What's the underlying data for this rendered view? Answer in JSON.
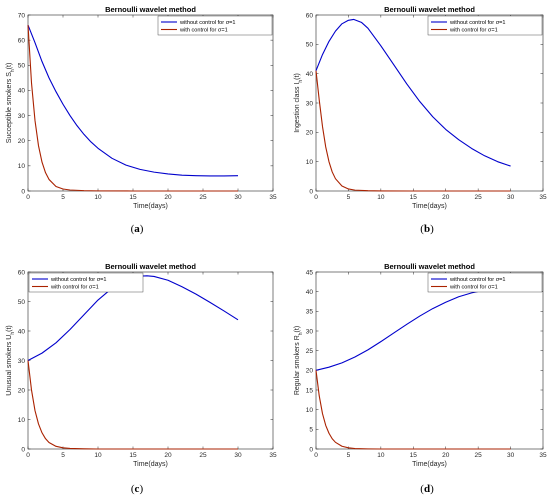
{
  "chart_data": [
    {
      "panel": "(a)",
      "type": "line",
      "title": "Bernoulli wavelet method",
      "xlabel": "Time(days)",
      "ylabel": "Succeptible smokers S_h(t)",
      "xlim": [
        0,
        35
      ],
      "ylim": [
        0,
        70
      ],
      "xticks": [
        0,
        5,
        10,
        15,
        20,
        25,
        30,
        35
      ],
      "yticks": [
        0,
        10,
        20,
        30,
        40,
        50,
        60,
        70
      ],
      "legend_position": "top-right",
      "series": [
        {
          "name": "without control for σ=1",
          "color": "#0000cc",
          "x": [
            0,
            1,
            2,
            3,
            4,
            5,
            6,
            7,
            8,
            9,
            10,
            12,
            14,
            16,
            18,
            20,
            22,
            24,
            26,
            28,
            30
          ],
          "y": [
            66,
            59,
            51.5,
            45,
            39.5,
            34.5,
            30,
            26,
            22.5,
            19.5,
            17,
            13,
            10.3,
            8.6,
            7.5,
            6.8,
            6.3,
            6.1,
            6.0,
            6.0,
            6.1
          ]
        },
        {
          "name": "with control for σ=1",
          "color": "#aa2200",
          "x": [
            0,
            0.5,
            1,
            1.5,
            2,
            2.5,
            3,
            4,
            5,
            6,
            8,
            10,
            15,
            20,
            25,
            30
          ],
          "y": [
            66,
            43,
            28,
            18,
            11.5,
            7.3,
            4.6,
            1.8,
            0.8,
            0.4,
            0.15,
            0.05,
            0,
            0,
            0,
            0
          ]
        }
      ]
    },
    {
      "panel": "(b)",
      "type": "line",
      "title": "Bernoulli wavelet method",
      "xlabel": "Time(days)",
      "ylabel": "Ingestion class I_h(t)",
      "xlim": [
        0,
        35
      ],
      "ylim": [
        0,
        60
      ],
      "xticks": [
        0,
        5,
        10,
        15,
        20,
        25,
        30,
        35
      ],
      "yticks": [
        0,
        10,
        20,
        30,
        40,
        50,
        60
      ],
      "legend_position": "top-right",
      "series": [
        {
          "name": "without control for σ=1",
          "color": "#0000cc",
          "x": [
            0,
            1,
            2,
            3,
            4,
            5,
            5.8,
            7,
            8,
            10,
            12,
            14,
            16,
            18,
            20,
            22,
            24,
            26,
            28,
            30
          ],
          "y": [
            41,
            46.5,
            51,
            54.5,
            57,
            58.2,
            58.5,
            57.5,
            55.5,
            49.5,
            43,
            36.5,
            30.5,
            25.3,
            21,
            17.5,
            14.5,
            12,
            10,
            8.5
          ]
        },
        {
          "name": "with control for σ=1",
          "color": "#aa2200",
          "x": [
            0,
            0.5,
            1,
            1.5,
            2,
            2.5,
            3,
            4,
            5,
            6,
            8,
            10,
            15,
            20,
            25,
            30
          ],
          "y": [
            41,
            31,
            22,
            15,
            10,
            6.5,
            4.2,
            1.7,
            0.7,
            0.3,
            0.1,
            0.03,
            0,
            0,
            0,
            0
          ]
        }
      ]
    },
    {
      "panel": "(c)",
      "type": "line",
      "title": "Bernoulli wavelet method",
      "xlabel": "Time(days)",
      "ylabel": "Unusual smokers U_h(t)",
      "xlim": [
        0,
        35
      ],
      "ylim": [
        0,
        60
      ],
      "xticks": [
        0,
        5,
        10,
        15,
        20,
        25,
        30,
        35
      ],
      "yticks": [
        0,
        10,
        20,
        30,
        40,
        50,
        60
      ],
      "legend_position": "top-left",
      "series": [
        {
          "name": "without control for σ=1",
          "color": "#0000cc",
          "x": [
            0,
            2,
            4,
            6,
            8,
            10,
            12,
            14,
            16,
            17,
            18,
            20,
            22,
            24,
            26,
            28,
            30
          ],
          "y": [
            30,
            32.5,
            36,
            40.5,
            45.5,
            50.5,
            54.5,
            57.3,
            58.6,
            58.7,
            58.5,
            57.2,
            55,
            52.5,
            49.7,
            46.8,
            43.8
          ]
        },
        {
          "name": "with control for σ=1",
          "color": "#aa2200",
          "x": [
            0,
            0.5,
            1,
            1.5,
            2,
            2.5,
            3,
            4,
            5,
            6,
            8,
            10,
            15,
            20,
            25,
            30
          ],
          "y": [
            30,
            20,
            13,
            8.5,
            5.5,
            3.5,
            2.2,
            0.9,
            0.4,
            0.2,
            0.05,
            0,
            0,
            0,
            0,
            0
          ]
        }
      ]
    },
    {
      "panel": "(d)",
      "type": "line",
      "title": "Bernoulli wavelet method",
      "xlabel": "Time(days)",
      "ylabel": "Regular smokers R_h(t)",
      "xlim": [
        0,
        35
      ],
      "ylim": [
        0,
        45
      ],
      "xticks": [
        0,
        5,
        10,
        15,
        20,
        25,
        30,
        35
      ],
      "yticks": [
        0,
        5,
        10,
        15,
        20,
        25,
        30,
        35,
        40,
        45
      ],
      "legend_position": "top-right",
      "series": [
        {
          "name": "without control for σ=1",
          "color": "#0000cc",
          "x": [
            0,
            2,
            4,
            6,
            8,
            10,
            12,
            14,
            16,
            18,
            20,
            22,
            24,
            26,
            28,
            30
          ],
          "y": [
            20,
            20.8,
            21.9,
            23.4,
            25.2,
            27.3,
            29.5,
            31.7,
            33.8,
            35.7,
            37.3,
            38.7,
            39.7,
            40.4,
            40.8,
            40.9
          ]
        },
        {
          "name": "with control for σ=1",
          "color": "#aa2200",
          "x": [
            0,
            0.5,
            1,
            1.5,
            2,
            2.5,
            3,
            4,
            5,
            6,
            8,
            10,
            15,
            20,
            25,
            30
          ],
          "y": [
            20,
            13.5,
            9,
            6,
            4,
            2.6,
            1.7,
            0.7,
            0.3,
            0.12,
            0.03,
            0,
            0,
            0,
            0,
            0
          ]
        }
      ]
    }
  ]
}
